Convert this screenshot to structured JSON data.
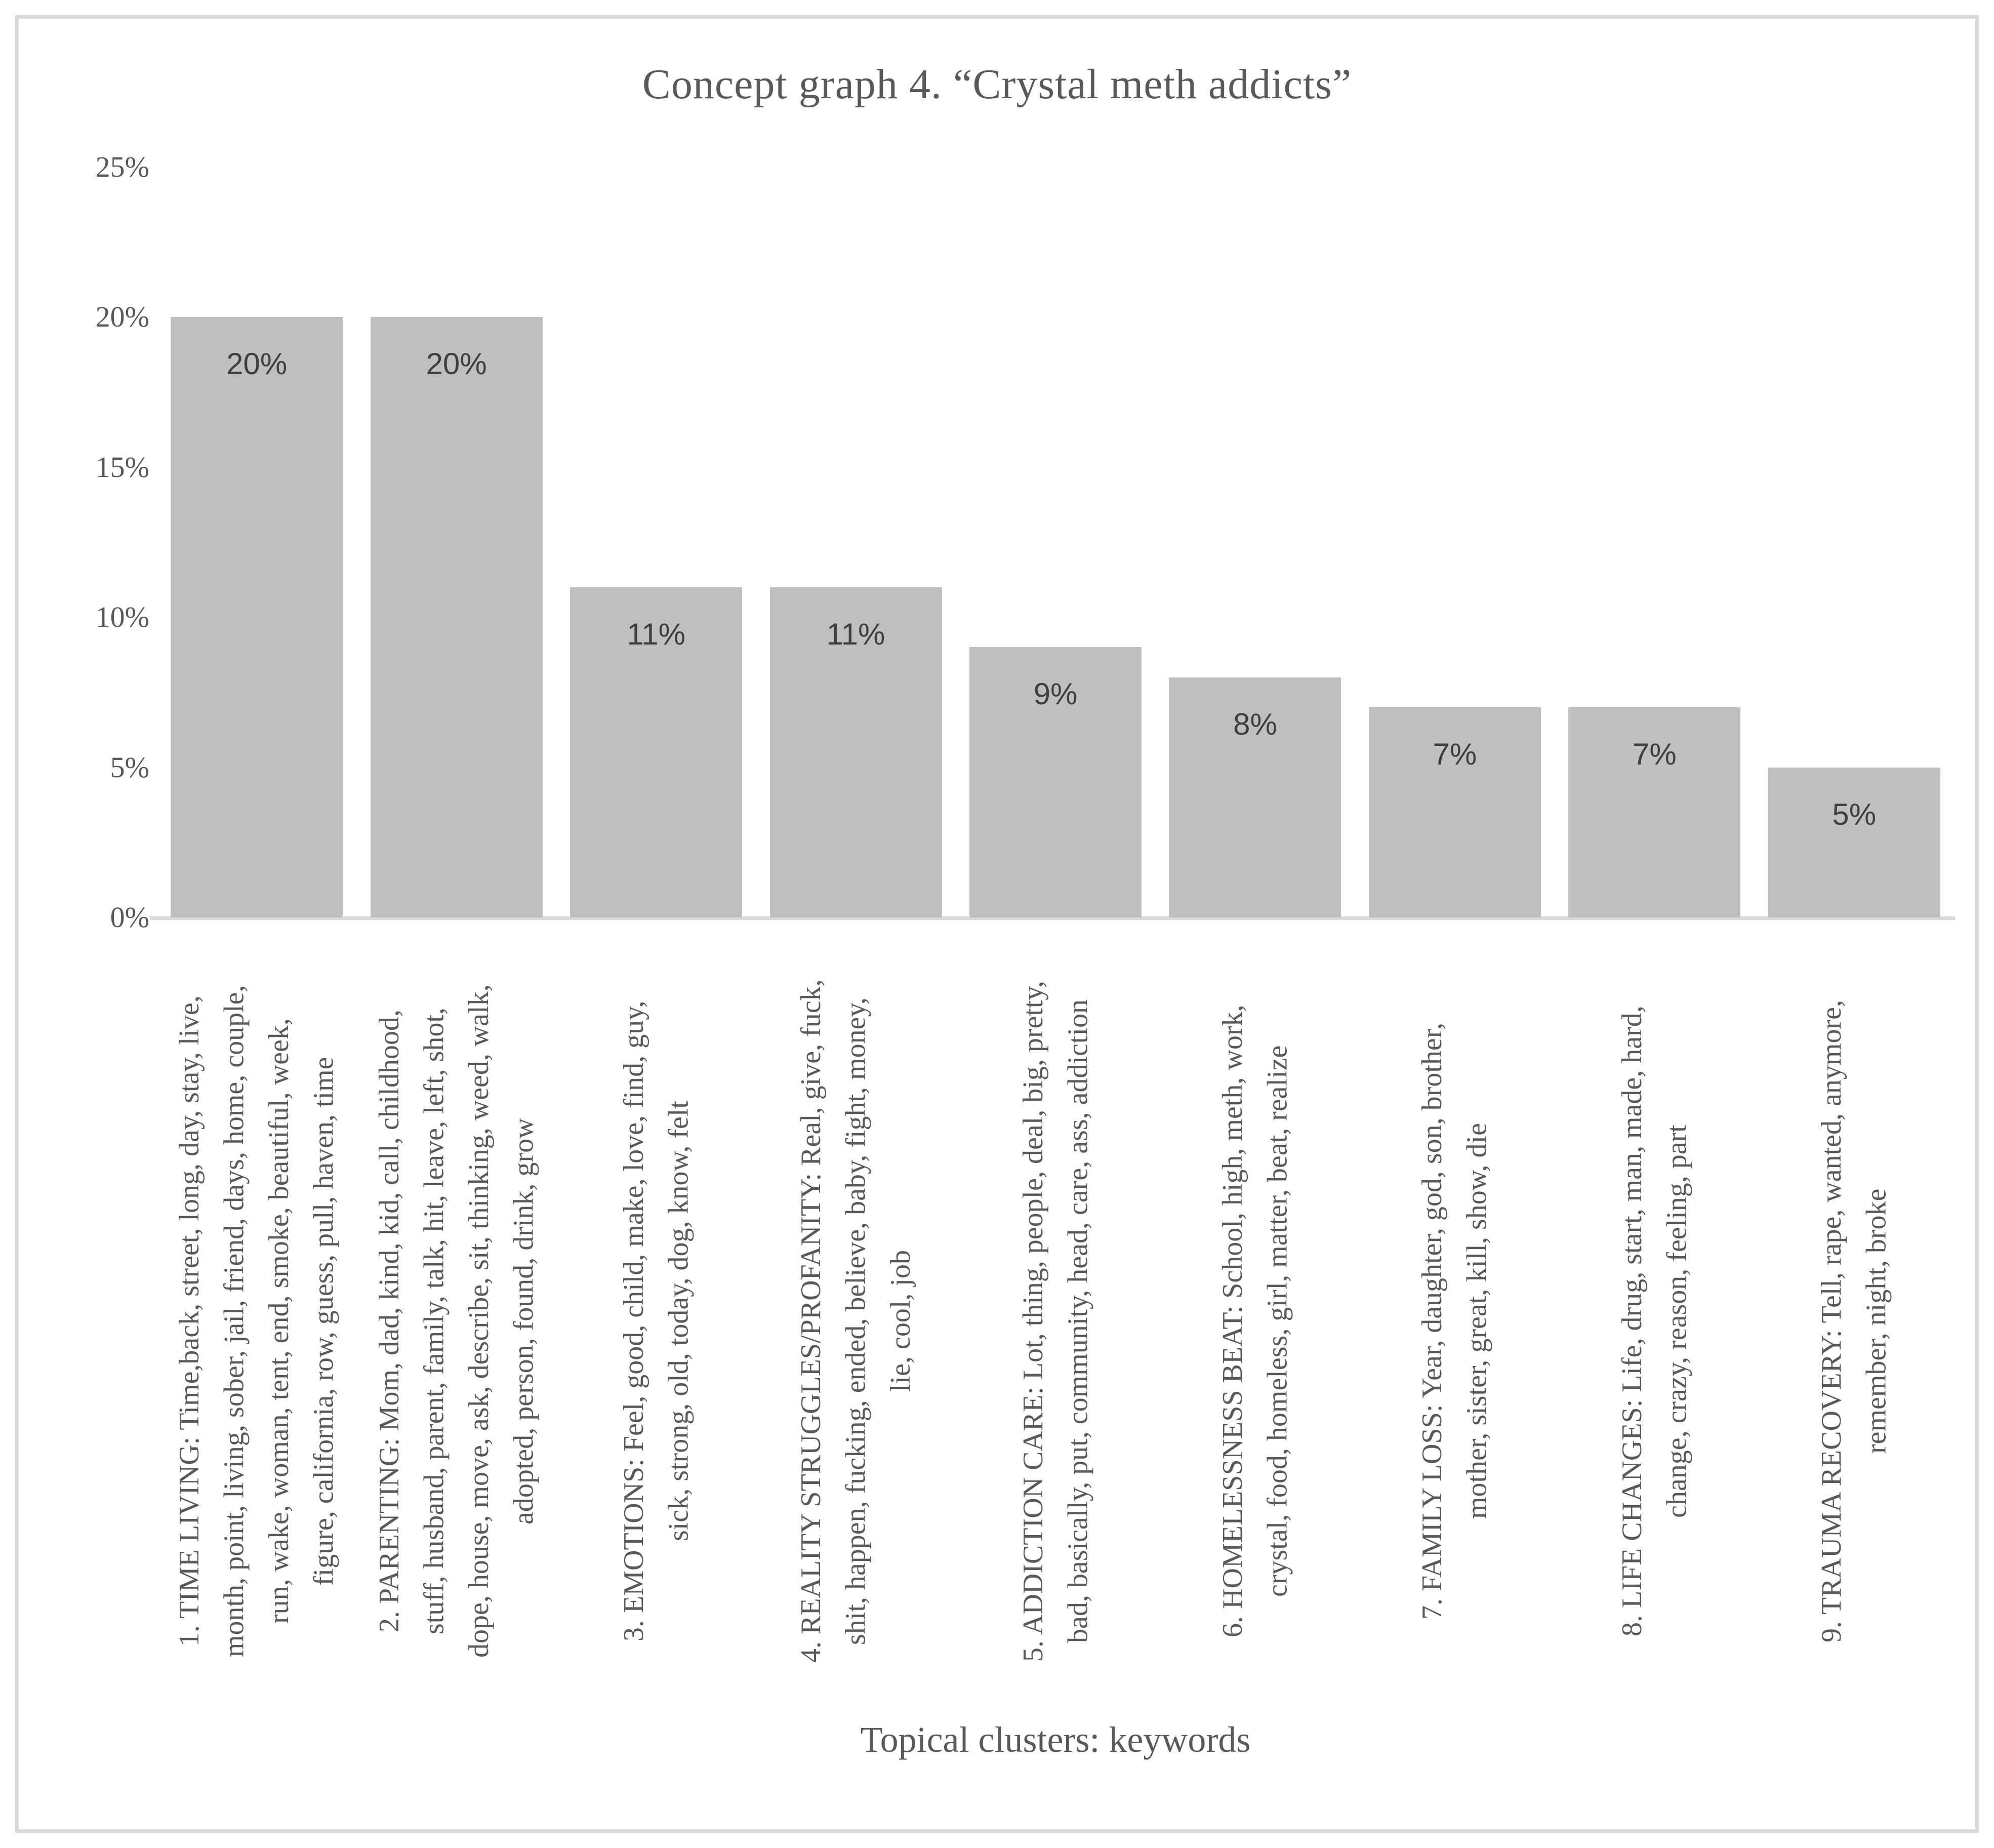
{
  "title": "Concept graph 4. “Crystal meth addicts”",
  "colors": {
    "bar_fill": "#bfbfbf",
    "axis_line": "#d9d9d9",
    "label_text": "#595959",
    "value_text": "#3f3f3f"
  },
  "chart_data": {
    "type": "bar",
    "title": "Concept graph 4. “Crystal meth addicts”",
    "xlabel": "Topical clusters: keywords",
    "ylabel": "",
    "ylim": [
      0,
      25
    ],
    "grid": false,
    "legend": false,
    "yticks": [
      "0%",
      "5%",
      "10%",
      "15%",
      "20%",
      "25%"
    ],
    "values": [
      20,
      20,
      11,
      11,
      9,
      8,
      7,
      7,
      5
    ],
    "value_labels": [
      "20%",
      "20%",
      "11%",
      "11%",
      "9%",
      "8%",
      "7%",
      "7%",
      "5%"
    ],
    "categories": [
      "1. TIME LIVING: Time,back, street, long, day, stay, live, month, point, living, sober, jail, friend, days, home, couple, run, wake, woman, tent, end, smoke, beautiful, week, figure, california, row, guess, pull, haven, time",
      "2. PARENTING: Mom, dad, kind, kid, call, childhood, stuff, husband, parent, family, talk, hit, leave, left, shot, dope, house, move, ask, describe, sit, thinking, weed, walk, adopted, person, found, drink, grow",
      "3. EMOTIONS: Feel, good, child, make, love, find, guy, sick, strong, old, today, dog, know, felt",
      "4. REALITY STRUGGLES/PROFANITY: Real, give, fuck, shit, happen, fucking, ended, believe, baby, fight, money, lie, cool, job",
      "5. ADDICTION CARE: Lot, thing, people, deal, big, pretty, bad, basically, put, community, head, care, ass, addiction",
      "6. HOMELESSNESS BEAT: School, high, meth, work, crystal, food, homeless, girl, matter, beat, realize",
      "7. FAMILY LOSS: Year, daughter, god, son, brother, mother, sister, great, kill, show, die",
      "8. LIFE CHANGES: Life, drug, start, man, made, hard, change, crazy, reason, feeling, part",
      "9. TRAUMA RECOVERY: Tell, rape, wanted, anymore, remember, night, broke"
    ],
    "category_lines": [
      [
        "1. TIME LIVING: Time,back, street, long, day, stay, live,",
        "month, point, living, sober, jail, friend, days, home, couple,",
        "run, wake, woman, tent, end, smoke, beautiful, week,",
        "figure, california, row, guess, pull, haven, time"
      ],
      [
        "2. PARENTING: Mom, dad, kind, kid, call, childhood,",
        "stuff, husband, parent, family, talk, hit, leave, left, shot,",
        "dope, house, move, ask, describe, sit, thinking, weed, walk,",
        "adopted, person, found, drink, grow"
      ],
      [
        "3. EMOTIONS: Feel, good, child, make, love, find, guy,",
        "sick, strong, old, today, dog, know, felt"
      ],
      [
        "4. REALITY STRUGGLES/PROFANITY: Real, give, fuck,",
        "shit, happen, fucking, ended, believe, baby, fight, money,",
        "lie, cool, job"
      ],
      [
        "5. ADDICTION CARE: Lot, thing, people, deal, big, pretty,",
        "bad, basically, put, community, head, care, ass, addiction"
      ],
      [
        "6. HOMELESSNESS BEAT: School, high, meth, work,",
        "crystal, food, homeless, girl, matter, beat, realize"
      ],
      [
        "7. FAMILY LOSS: Year, daughter, god, son, brother,",
        "mother, sister, great, kill, show, die"
      ],
      [
        "8. LIFE CHANGES: Life, drug, start, man, made, hard,",
        "change, crazy, reason, feeling, part"
      ],
      [
        "9. TRAUMA RECOVERY: Tell, rape, wanted, anymore,",
        "remember, night, broke"
      ]
    ]
  }
}
